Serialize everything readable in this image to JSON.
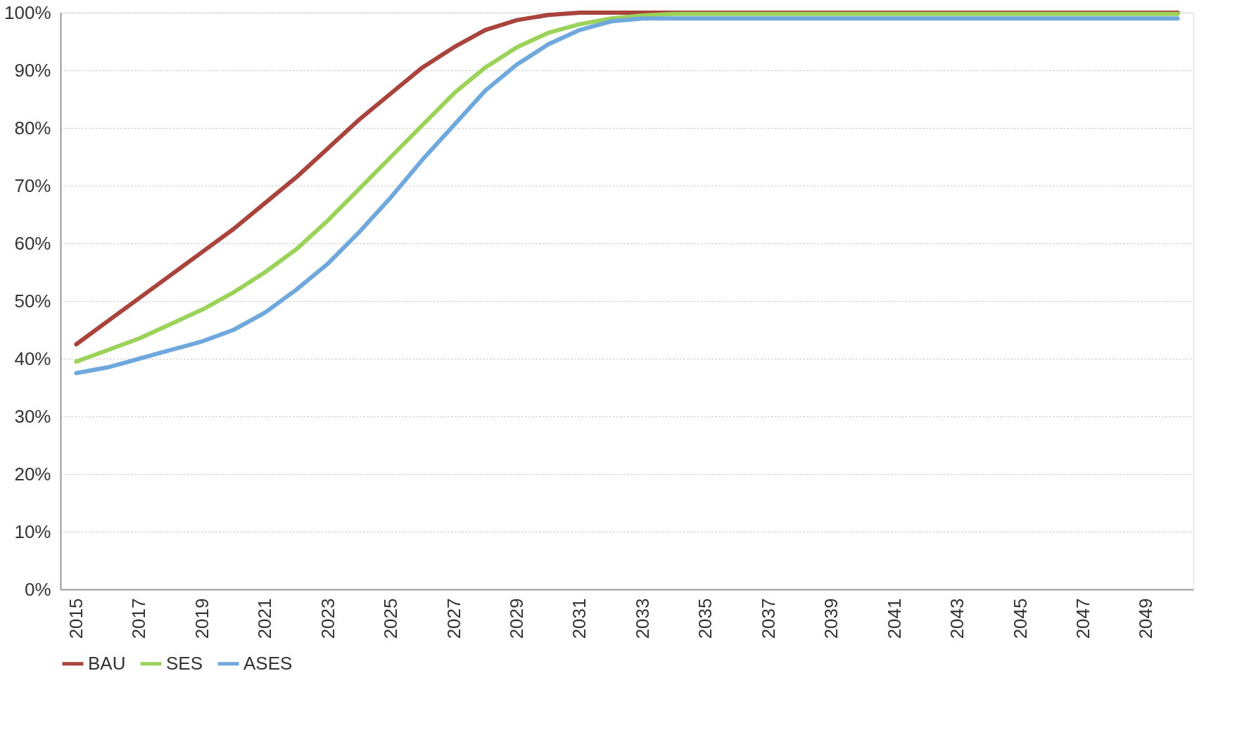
{
  "chart_data": {
    "type": "line",
    "x": [
      2015,
      2016,
      2017,
      2018,
      2019,
      2020,
      2021,
      2022,
      2023,
      2024,
      2025,
      2026,
      2027,
      2028,
      2029,
      2030,
      2031,
      2032,
      2033,
      2034,
      2035,
      2036,
      2037,
      2038,
      2039,
      2040,
      2041,
      2042,
      2043,
      2044,
      2045,
      2046,
      2047,
      2048,
      2049,
      2050
    ],
    "series": [
      {
        "name": "BAU",
        "color": "#a9443c",
        "values": [
          42.5,
          46.5,
          50.5,
          54.5,
          58.5,
          62.5,
          67,
          71.5,
          76.5,
          81.5,
          86,
          90.5,
          94,
          97,
          98.7,
          99.6,
          100,
          100,
          100,
          100,
          100,
          100,
          100,
          100,
          100,
          100,
          100,
          100,
          100,
          100,
          100,
          100,
          100,
          100,
          100,
          100
        ]
      },
      {
        "name": "SES",
        "color": "#9bd25a",
        "values": [
          39.5,
          41.5,
          43.5,
          46,
          48.5,
          51.5,
          55,
          59,
          64,
          69.5,
          75,
          80.5,
          86,
          90.5,
          94,
          96.5,
          98,
          99,
          99.5,
          99.8,
          99.8,
          99.8,
          99.8,
          99.8,
          99.8,
          99.8,
          99.8,
          99.8,
          99.8,
          99.8,
          99.8,
          99.8,
          99.8,
          99.8,
          99.8,
          99.8
        ]
      },
      {
        "name": "ASES",
        "color": "#6fa8dc",
        "values": [
          37.5,
          38.5,
          40,
          41.5,
          43,
          45,
          48,
          52,
          56.5,
          62,
          68,
          74.5,
          80.5,
          86.5,
          91,
          94.5,
          97,
          98.5,
          99,
          99,
          99,
          99,
          99,
          99,
          99,
          99,
          99,
          99,
          99,
          99,
          99,
          99,
          99,
          99,
          99,
          99
        ]
      }
    ],
    "xlim": [
      2014.5,
      2050.5
    ],
    "xticks": [
      2015,
      2017,
      2019,
      2021,
      2023,
      2025,
      2027,
      2029,
      2031,
      2033,
      2035,
      2037,
      2039,
      2041,
      2043,
      2045,
      2047,
      2049
    ],
    "ylim": [
      0,
      100
    ],
    "yticks": [
      {
        "value": 0,
        "label": "0%"
      },
      {
        "value": 10,
        "label": "10%"
      },
      {
        "value": 20,
        "label": "20%"
      },
      {
        "value": 30,
        "label": "30%"
      },
      {
        "value": 40,
        "label": "40%"
      },
      {
        "value": 50,
        "label": "50%"
      },
      {
        "value": 60,
        "label": "60%"
      },
      {
        "value": 70,
        "label": "70%"
      },
      {
        "value": 80,
        "label": "80%"
      },
      {
        "value": 90,
        "label": "90%"
      },
      {
        "value": 100,
        "label": "100%"
      }
    ],
    "grid": "y",
    "legend": "bottom",
    "marker": "none",
    "line_style": "solid"
  }
}
